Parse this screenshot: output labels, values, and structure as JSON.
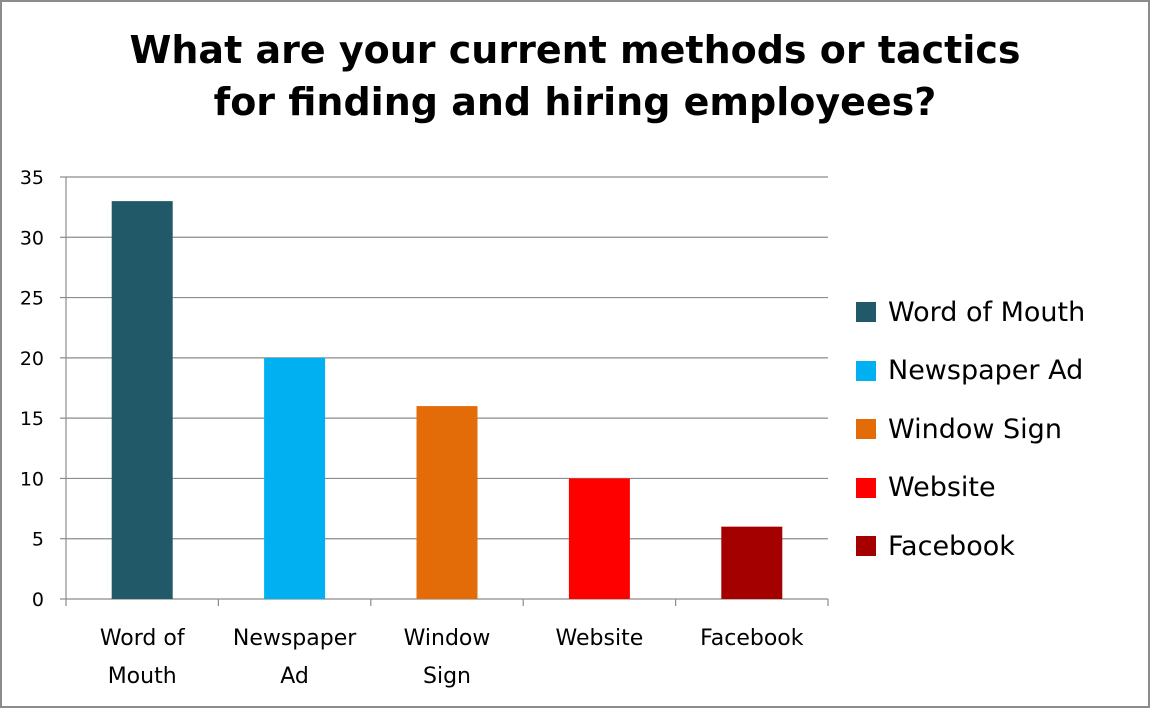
{
  "chart_data": {
    "type": "bar",
    "title": "What are your current methods or tactics for finding and hiring employees?",
    "title_lines": [
      "What are your current methods or tactics",
      "for finding and hiring employees?"
    ],
    "categories": [
      "Word of Mouth",
      "Newspaper Ad",
      "Window Sign",
      "Website",
      "Facebook"
    ],
    "category_label_lines": [
      [
        "Word of",
        "Mouth"
      ],
      [
        "Newspaper",
        "Ad"
      ],
      [
        "Window",
        "Sign"
      ],
      [
        "Website"
      ],
      [
        "Facebook"
      ]
    ],
    "values": [
      33,
      20,
      16,
      10,
      6
    ],
    "colors": [
      "#215968",
      "#00b0f0",
      "#e36c09",
      "#ff0000",
      "#a50000"
    ],
    "ylim": [
      0,
      35
    ],
    "yticks": [
      0,
      5,
      10,
      15,
      20,
      25,
      30,
      35
    ],
    "xlabel": "",
    "ylabel": "",
    "grid": true,
    "legend_position": "right",
    "legend": [
      "Word of Mouth",
      "Newspaper Ad",
      "Window Sign",
      "Website",
      "Facebook"
    ]
  }
}
